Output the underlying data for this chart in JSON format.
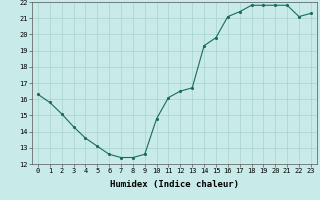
{
  "title": "",
  "xlabel": "Humidex (Indice chaleur)",
  "x_values": [
    0,
    1,
    2,
    3,
    4,
    5,
    6,
    7,
    8,
    9,
    10,
    11,
    12,
    13,
    14,
    15,
    16,
    17,
    18,
    19,
    20,
    21,
    22,
    23
  ],
  "y_values": [
    16.3,
    15.8,
    15.1,
    14.3,
    13.6,
    13.1,
    12.6,
    12.4,
    12.4,
    12.6,
    14.8,
    16.1,
    16.5,
    16.7,
    19.3,
    19.8,
    21.1,
    21.4,
    21.8,
    21.8,
    21.8,
    21.8,
    21.1,
    21.3
  ],
  "ylim": [
    12,
    22
  ],
  "xlim": [
    -0.5,
    23.5
  ],
  "yticks": [
    12,
    13,
    14,
    15,
    16,
    17,
    18,
    19,
    20,
    21,
    22
  ],
  "xticks": [
    0,
    1,
    2,
    3,
    4,
    5,
    6,
    7,
    8,
    9,
    10,
    11,
    12,
    13,
    14,
    15,
    16,
    17,
    18,
    19,
    20,
    21,
    22,
    23
  ],
  "line_color": "#1a6b5a",
  "marker_color": "#1a6b5a",
  "bg_color": "#c8eae8",
  "grid_color": "#a8d4d0",
  "tick_fontsize": 5.0,
  "label_fontsize": 6.5,
  "linewidth": 0.8,
  "markersize": 2.5
}
